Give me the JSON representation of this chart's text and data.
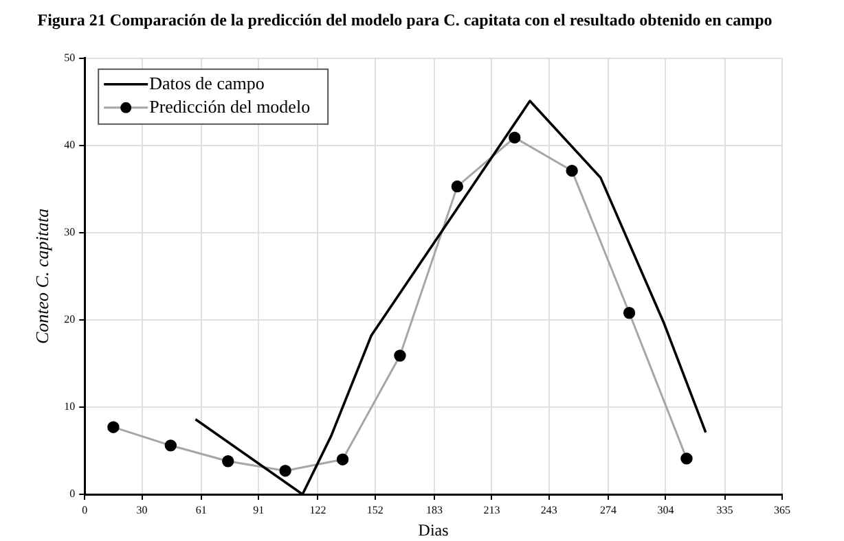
{
  "chart_data": {
    "type": "line",
    "title": "Figura 21 Comparación de la predicción del modelo para C. capitata con el resultado obtenido en campo",
    "xlabel": "Dias",
    "ylabel": "Conteo C. capitata",
    "xlim": [
      0,
      365
    ],
    "xticks": [
      0,
      30,
      61,
      91,
      122,
      152,
      183,
      213,
      243,
      274,
      304,
      335,
      365
    ],
    "ylim": [
      0,
      50
    ],
    "yticks": [
      0,
      10,
      20,
      30,
      40,
      50
    ],
    "grid": true,
    "legend": "top left",
    "line_style": "solid",
    "series": [
      {
        "name": "Datos de campo",
        "color": "#000000",
        "marker": "none",
        "x": [
          58,
          114,
          129,
          150,
          233,
          270,
          303,
          325
        ],
        "values": [
          8.6,
          0,
          6.7,
          18.2,
          45.1,
          36.3,
          19.7,
          7.1
        ]
      },
      {
        "name": "Predicción del modelo",
        "color": "#a6a6a6",
        "marker": "circle",
        "x": [
          15,
          45,
          75,
          105,
          135,
          165,
          195,
          225,
          255,
          285,
          315
        ],
        "values": [
          7.7,
          5.6,
          3.8,
          2.7,
          4.0,
          15.9,
          35.3,
          40.9,
          37.1,
          20.8,
          4.1
        ]
      }
    ]
  }
}
